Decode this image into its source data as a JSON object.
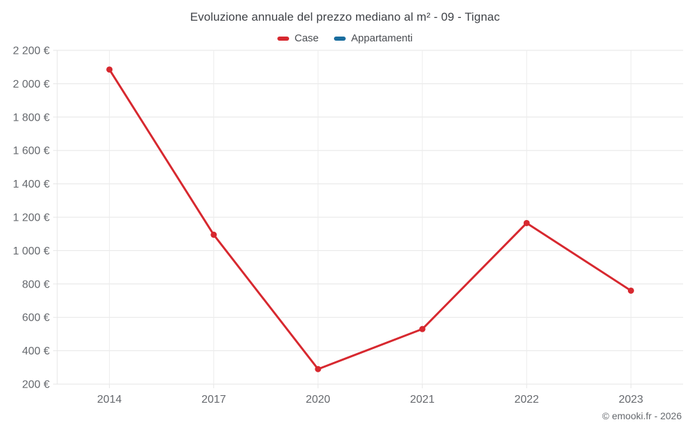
{
  "header": {
    "title": "Evoluzione annuale del prezzo mediano al m² - 09 - Tignac"
  },
  "legend": {
    "items": [
      {
        "label": "Case",
        "color": "#d7282f"
      },
      {
        "label": "Appartamenti",
        "color": "#1a6d9e"
      }
    ]
  },
  "footer": {
    "copyright": "© emooki.fr - 2026"
  },
  "chart_data": {
    "type": "line",
    "title": "Evoluzione annuale del prezzo mediano al m² - 09 - Tignac",
    "categories": [
      "2014",
      "2017",
      "2020",
      "2021",
      "2022",
      "2023"
    ],
    "series": [
      {
        "name": "Case",
        "color": "#d7282f",
        "values": [
          2085,
          1095,
          290,
          530,
          1165,
          760
        ]
      },
      {
        "name": "Appartamenti",
        "color": "#1a6d9e",
        "values": []
      }
    ],
    "xlabel": "",
    "ylabel": "",
    "ylim": [
      200,
      2200
    ],
    "y_step": 200,
    "y_tick_labels": [
      "200 €",
      "400 €",
      "600 €",
      "800 €",
      "1 000 €",
      "1 200 €",
      "1 400 €",
      "1 600 €",
      "1 800 €",
      "2 000 €",
      "2 200 €"
    ],
    "grid": true,
    "legend_position": "top",
    "marker": "circle",
    "colors": {
      "grid": "#e6e6e6",
      "axis_label": "#66696e",
      "title": "#3f4247"
    }
  }
}
